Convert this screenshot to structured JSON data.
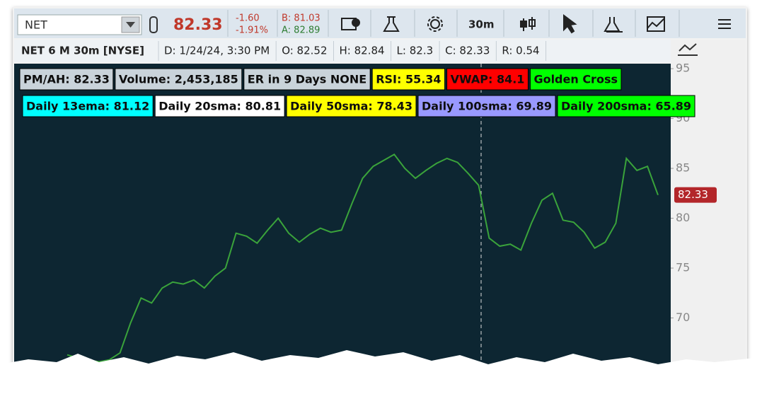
{
  "toolbar": {
    "symbol": "NET",
    "last": "82.33",
    "change": "-1.60",
    "change_pct": "-1.91%",
    "bid": "B: 81.03",
    "ask": "A: 82.89",
    "timeframe": "30m"
  },
  "header": {
    "chart_name": "NET 6 M 30m [NYSE]",
    "fields": [
      "D: 1/24/24, 3:30 PM",
      "O: 82.52",
      "H: 82.84",
      "L: 82.3",
      "C: 82.33",
      "R: 0.54"
    ]
  },
  "labels": [
    [
      {
        "text": "PM/AH: 82.33",
        "color": "#c9d3da"
      },
      {
        "text": "Volume: 2,453,185",
        "color": "#c9d3da"
      },
      {
        "text": "ER in 9 Days NONE",
        "color": "#c9d3da"
      },
      {
        "text": "RSI: 55.34",
        "color": "#ffff00"
      },
      {
        "text": "VWAP: 84.1",
        "color": "#ff0000"
      },
      {
        "text": "Golden Cross",
        "color": "#00ff00"
      }
    ],
    [
      {
        "text": "Daily 13ema: 81.12",
        "color": "#00ffff"
      },
      {
        "text": "Daily 20sma: 80.81",
        "color": "#ffffff"
      },
      {
        "text": "Daily 50sma: 78.43",
        "color": "#ffff00"
      },
      {
        "text": "Daily 100sma: 69.89",
        "color": "#9999ff"
      },
      {
        "text": "Daily 200sma: 65.89",
        "color": "#00ff00"
      }
    ]
  ],
  "chart_data": {
    "type": "line",
    "color": "#3aa33a",
    "values": [
      66.3,
      66.0,
      65.8,
      65.6,
      65.8,
      66.5,
      69.5,
      72.0,
      71.5,
      73.0,
      73.6,
      73.4,
      73.8,
      73.0,
      74.2,
      75.0,
      78.5,
      78.2,
      77.5,
      78.8,
      80.0,
      78.5,
      77.6,
      78.4,
      79.0,
      78.6,
      78.8,
      81.5,
      84.0,
      85.2,
      85.8,
      86.4,
      85.0,
      84.0,
      84.8,
      85.5,
      86.0,
      85.6,
      84.5,
      83.3,
      78.0,
      77.2,
      77.4,
      76.8,
      79.5,
      81.8,
      82.5,
      79.8,
      79.6,
      78.6,
      77.0,
      77.6,
      79.5,
      86.0,
      84.8,
      85.2,
      82.33
    ],
    "last_label": "82.33",
    "last_label_color": "#b3262b",
    "ylim": [
      65,
      95.5
    ],
    "yticks": [
      70,
      75,
      80,
      85,
      90,
      95
    ]
  }
}
